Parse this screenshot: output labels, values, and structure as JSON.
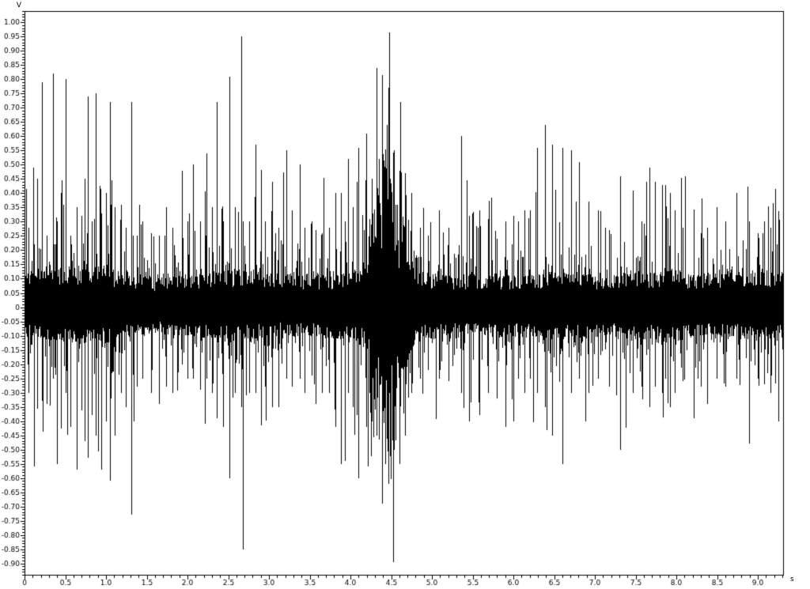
{
  "app": {
    "background": "#ffffff"
  },
  "chart_data": {
    "type": "line",
    "subtype": "audio-waveform",
    "title": "",
    "ylabel": "V",
    "xlabel": "s",
    "line_color": "#000000",
    "axis_color": "#000000",
    "background_color": "#ffffff",
    "grid": false,
    "legend": false,
    "x_range": [
      0,
      9.31
    ],
    "y_range": [
      -0.94,
      1.04
    ],
    "x_tick_step": 0.5,
    "x_minor_step": 0.1,
    "y_tick_step": 0.05,
    "y_minor_step": 0.01,
    "x_tick_labels": [
      "0",
      "0.5",
      "1.0",
      "1.5",
      "2.0",
      "2.5",
      "3.0",
      "3.5",
      "4.0",
      "4.5",
      "5.0",
      "5.5",
      "6.0",
      "6.5",
      "7.0",
      "7.5",
      "8.0",
      "8.5",
      "9.0"
    ],
    "y_tick_labels": [
      "1.00",
      "0.95",
      "0.90",
      "0.85",
      "0.80",
      "0.75",
      "0.70",
      "0.65",
      "0.60",
      "0.55",
      "0.50",
      "0.45",
      "0.40",
      "0.35",
      "0.30",
      "0.25",
      "0.20",
      "0.15",
      "0.10",
      "0.05",
      "0",
      "-0.05",
      "-0.10",
      "-0.15",
      "-0.20",
      "-0.25",
      "-0.30",
      "-0.35",
      "-0.40",
      "-0.45",
      "-0.50",
      "-0.55",
      "-0.60",
      "-0.65",
      "-0.70",
      "-0.75",
      "-0.80",
      "-0.85",
      "-0.90"
    ],
    "max_positive_peak": {
      "t": 2.66,
      "v": 0.95
    },
    "max_negative_peak": {
      "t": 2.68,
      "v": -0.85
    },
    "burst": {
      "t_start": 4.22,
      "t_end": 4.78,
      "t_center": 4.45,
      "max_amp_pos": 0.84,
      "max_amp_neg": -0.69
    },
    "noise_envelope": [
      [
        0.0,
        0.12,
        0.1
      ],
      [
        0.6,
        0.14,
        0.12
      ],
      [
        0.9,
        0.15,
        0.13
      ],
      [
        1.2,
        0.12,
        0.11
      ],
      [
        1.6,
        0.1,
        0.09
      ],
      [
        2.1,
        0.11,
        0.1
      ],
      [
        2.5,
        0.13,
        0.12
      ],
      [
        3.0,
        0.12,
        0.1
      ],
      [
        3.6,
        0.11,
        0.1
      ],
      [
        4.0,
        0.12,
        0.11
      ],
      [
        4.2,
        0.16,
        0.14
      ],
      [
        4.35,
        0.3,
        0.26
      ],
      [
        4.45,
        0.34,
        0.3
      ],
      [
        4.55,
        0.26,
        0.27
      ],
      [
        4.7,
        0.16,
        0.16
      ],
      [
        4.9,
        0.12,
        0.11
      ],
      [
        5.5,
        0.11,
        0.1
      ],
      [
        6.0,
        0.11,
        0.1
      ],
      [
        6.5,
        0.12,
        0.11
      ],
      [
        7.0,
        0.11,
        0.1
      ],
      [
        7.6,
        0.12,
        0.11
      ],
      [
        7.9,
        0.13,
        0.12
      ],
      [
        8.3,
        0.11,
        0.1
      ],
      [
        8.8,
        0.12,
        0.11
      ],
      [
        9.31,
        0.12,
        0.11
      ]
    ],
    "spikes": [
      [
        0.05,
        0.28,
        -0.3
      ],
      [
        0.12,
        0.22,
        -0.56
      ],
      [
        0.21,
        0.79,
        -0.33
      ],
      [
        0.27,
        0.25,
        -0.34
      ],
      [
        0.35,
        0.82,
        -0.25
      ],
      [
        0.4,
        0.3,
        -0.55
      ],
      [
        0.5,
        0.8,
        -0.3
      ],
      [
        0.56,
        0.25,
        -0.42
      ],
      [
        0.64,
        0.35,
        -0.57
      ],
      [
        0.7,
        0.32,
        -0.35
      ],
      [
        0.74,
        0.45,
        -0.47
      ],
      [
        0.78,
        0.74,
        -0.53
      ],
      [
        0.83,
        0.3,
        -0.38
      ],
      [
        0.87,
        0.75,
        -0.45
      ],
      [
        0.94,
        0.33,
        -0.57
      ],
      [
        1.0,
        0.4,
        -0.4
      ],
      [
        1.05,
        0.72,
        -0.61
      ],
      [
        1.11,
        0.35,
        -0.45
      ],
      [
        1.18,
        0.36,
        -0.3
      ],
      [
        1.24,
        0.28,
        -0.35
      ],
      [
        1.31,
        0.72,
        -0.73
      ],
      [
        1.38,
        0.25,
        -0.28
      ],
      [
        1.45,
        0.3,
        -0.25
      ],
      [
        1.55,
        0.26,
        -0.3
      ],
      [
        1.65,
        0.25,
        -0.34
      ],
      [
        1.74,
        0.35,
        -0.28
      ],
      [
        1.82,
        0.28,
        -0.3
      ],
      [
        1.93,
        0.48,
        -0.2
      ],
      [
        2.0,
        0.3,
        -0.25
      ],
      [
        2.07,
        0.5,
        -0.25
      ],
      [
        2.16,
        0.3,
        -0.29
      ],
      [
        2.23,
        0.54,
        -0.25
      ],
      [
        2.3,
        0.35,
        -0.3
      ],
      [
        2.36,
        0.72,
        -0.39
      ],
      [
        2.44,
        0.3,
        -0.42
      ],
      [
        2.51,
        0.81,
        -0.6
      ],
      [
        2.58,
        0.35,
        -0.3
      ],
      [
        2.66,
        0.95,
        -0.35
      ],
      [
        2.68,
        0.3,
        -0.85
      ],
      [
        2.76,
        0.3,
        -0.3
      ],
      [
        2.83,
        0.57,
        -0.3
      ],
      [
        2.95,
        0.3,
        -0.28
      ],
      [
        3.04,
        0.44,
        -0.35
      ],
      [
        3.12,
        0.28,
        -0.35
      ],
      [
        3.21,
        0.55,
        -0.25
      ],
      [
        3.28,
        0.34,
        -0.28
      ],
      [
        3.38,
        0.5,
        -0.25
      ],
      [
        3.44,
        0.28,
        -0.3
      ],
      [
        3.52,
        0.3,
        -0.24
      ],
      [
        3.57,
        0.27,
        -0.34
      ],
      [
        3.65,
        0.26,
        -0.25
      ],
      [
        3.74,
        0.28,
        -0.3
      ],
      [
        3.82,
        0.4,
        -0.42
      ],
      [
        3.88,
        0.4,
        -0.55
      ],
      [
        3.93,
        0.3,
        -0.54
      ],
      [
        3.97,
        0.52,
        -0.3
      ],
      [
        4.03,
        0.35,
        -0.35
      ],
      [
        4.08,
        0.44,
        -0.38
      ],
      [
        4.1,
        0.56,
        -0.6
      ],
      [
        4.19,
        0.61,
        -0.42
      ],
      [
        4.26,
        0.45,
        -0.4
      ],
      [
        4.32,
        0.84,
        -0.45
      ],
      [
        4.39,
        0.6,
        -0.69
      ],
      [
        4.43,
        0.55,
        -0.55
      ],
      [
        4.47,
        0.77,
        -0.62
      ],
      [
        4.53,
        0.55,
        -0.5
      ],
      [
        4.6,
        0.48,
        -0.55
      ],
      [
        4.67,
        0.47,
        -0.45
      ],
      [
        4.75,
        0.4,
        -0.3
      ],
      [
        4.85,
        0.28,
        -0.25
      ],
      [
        4.95,
        0.25,
        -0.22
      ],
      [
        5.09,
        0.34,
        -0.25
      ],
      [
        5.2,
        0.28,
        -0.26
      ],
      [
        5.36,
        0.6,
        -0.3
      ],
      [
        5.46,
        0.32,
        -0.4
      ],
      [
        5.58,
        0.34,
        -0.38
      ],
      [
        5.69,
        0.31,
        -0.3
      ],
      [
        5.8,
        0.24,
        -0.25
      ],
      [
        5.9,
        0.3,
        -0.42
      ],
      [
        6.0,
        0.32,
        -0.4
      ],
      [
        6.06,
        0.3,
        -0.25
      ],
      [
        6.14,
        0.34,
        -0.3
      ],
      [
        6.2,
        0.34,
        -0.25
      ],
      [
        6.29,
        0.56,
        -0.3
      ],
      [
        6.39,
        0.64,
        -0.35
      ],
      [
        6.48,
        0.57,
        -0.45
      ],
      [
        6.6,
        0.56,
        -0.55
      ],
      [
        6.71,
        0.55,
        -0.3
      ],
      [
        6.81,
        0.51,
        -0.25
      ],
      [
        6.92,
        0.37,
        -0.3
      ],
      [
        7.04,
        0.34,
        -0.25
      ],
      [
        7.17,
        0.27,
        -0.28
      ],
      [
        7.31,
        0.46,
        -0.5
      ],
      [
        7.47,
        0.41,
        -0.3
      ],
      [
        7.57,
        0.3,
        -0.28
      ],
      [
        7.67,
        0.49,
        -0.35
      ],
      [
        7.74,
        0.44,
        -0.28
      ],
      [
        7.82,
        0.43,
        -0.3
      ],
      [
        7.86,
        0.43,
        -0.25
      ],
      [
        7.92,
        0.4,
        -0.35
      ],
      [
        7.98,
        0.34,
        -0.3
      ],
      [
        8.08,
        0.28,
        -0.26
      ],
      [
        8.21,
        0.34,
        -0.39
      ],
      [
        8.3,
        0.26,
        -0.28
      ],
      [
        8.38,
        0.28,
        -0.34
      ],
      [
        8.49,
        0.35,
        -0.25
      ],
      [
        8.6,
        0.3,
        -0.28
      ],
      [
        8.74,
        0.33,
        -0.25
      ],
      [
        8.89,
        0.3,
        -0.48
      ],
      [
        9.0,
        0.26,
        -0.25
      ],
      [
        9.08,
        0.3,
        -0.27
      ],
      [
        9.15,
        0.28,
        -0.3
      ],
      [
        9.25,
        0.25,
        -0.4
      ]
    ]
  }
}
